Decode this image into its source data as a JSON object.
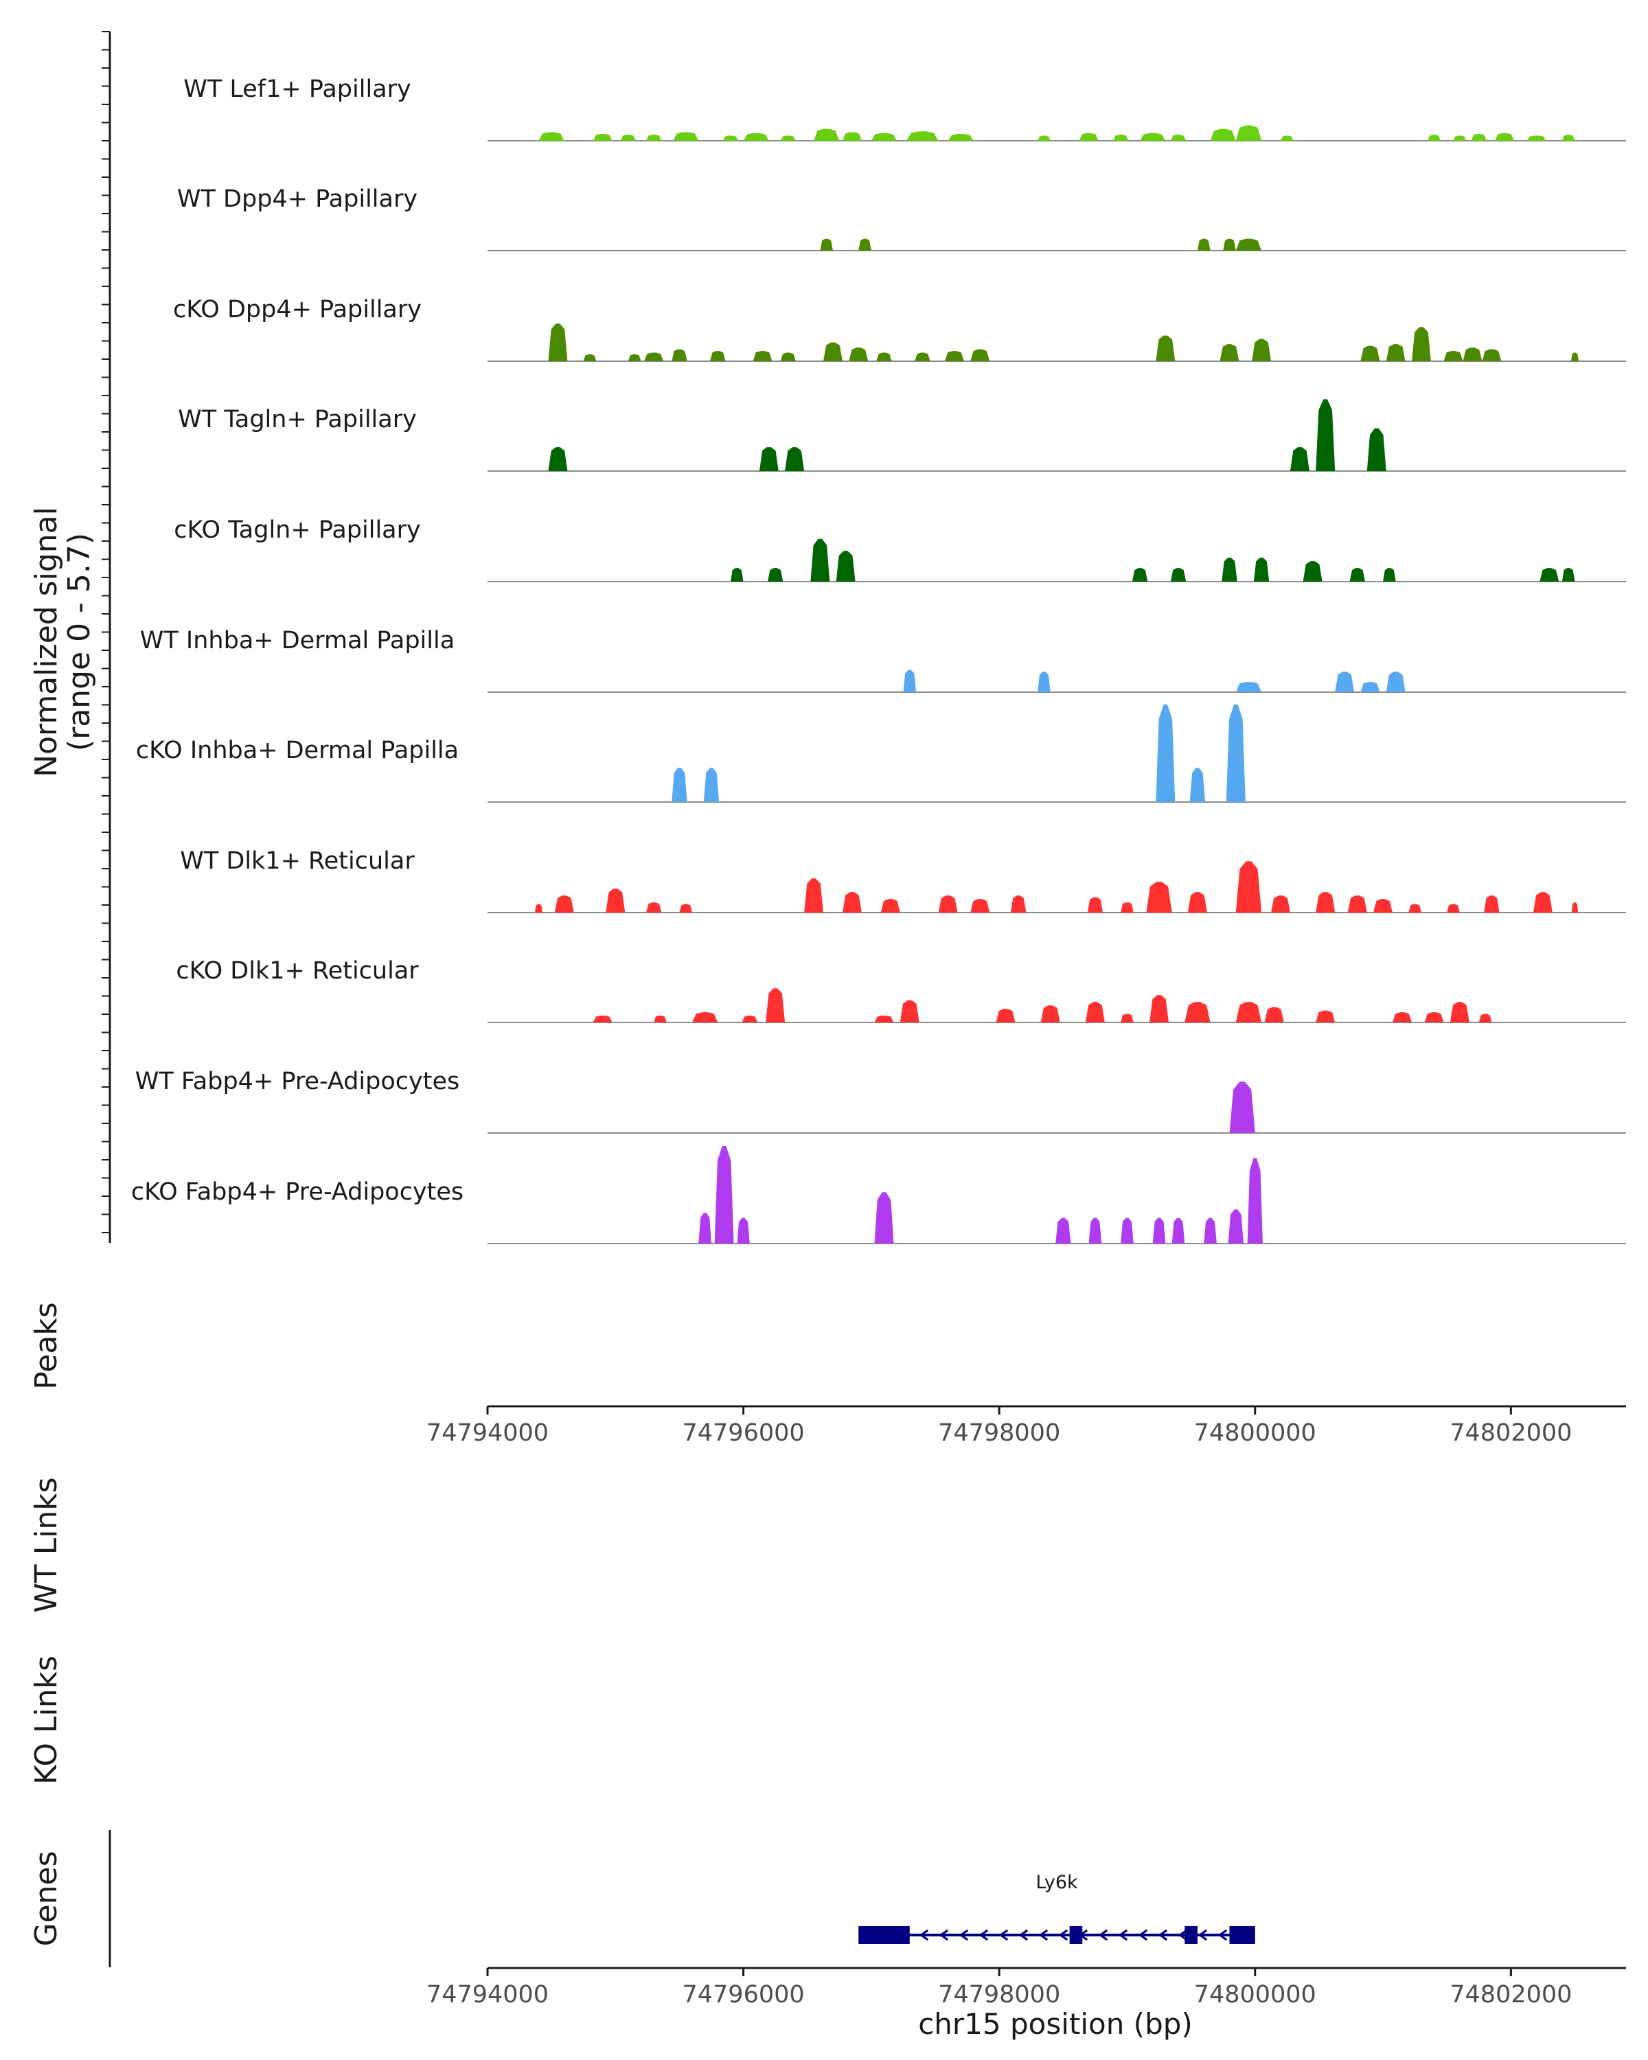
{
  "chart_data": {
    "type": "coverage",
    "y_axis_title_line1": "Normalized signal",
    "y_axis_title_line2": "(range 0 - 5.7)",
    "ylim": [
      0,
      5.7
    ],
    "xlim": [
      74794000,
      74802900
    ],
    "x_ticks": [
      74794000,
      74796000,
      74798000,
      74800000,
      74802000
    ],
    "x_tick_labels": [
      "74794000",
      "74796000",
      "74798000",
      "74800000",
      "74802000"
    ],
    "xlabel": "chr15 position (bp)",
    "tracks": [
      {
        "name": "WT Lef1+ Papillary",
        "color": "#6ACF11",
        "peaks": [
          [
            74794500,
            0.5,
            200
          ],
          [
            74794900,
            0.4,
            150
          ],
          [
            74795100,
            0.35,
            120
          ],
          [
            74795300,
            0.35,
            120
          ],
          [
            74795550,
            0.5,
            200
          ],
          [
            74795900,
            0.3,
            120
          ],
          [
            74796100,
            0.45,
            200
          ],
          [
            74796350,
            0.3,
            120
          ],
          [
            74796650,
            0.7,
            200
          ],
          [
            74796850,
            0.5,
            150
          ],
          [
            74797100,
            0.45,
            200
          ],
          [
            74797400,
            0.55,
            250
          ],
          [
            74797700,
            0.4,
            200
          ],
          [
            74798350,
            0.3,
            100
          ],
          [
            74798700,
            0.45,
            150
          ],
          [
            74798950,
            0.35,
            120
          ],
          [
            74799200,
            0.45,
            200
          ],
          [
            74799400,
            0.35,
            120
          ],
          [
            74799750,
            0.7,
            200
          ],
          [
            74799950,
            0.9,
            200
          ],
          [
            74800250,
            0.3,
            100
          ],
          [
            74801400,
            0.35,
            100
          ],
          [
            74801600,
            0.3,
            100
          ],
          [
            74801750,
            0.4,
            120
          ],
          [
            74801950,
            0.45,
            150
          ],
          [
            74802200,
            0.3,
            150
          ],
          [
            74802450,
            0.35,
            100
          ]
        ]
      },
      {
        "name": "WT Dpp4+ Papillary",
        "color": "#4B8A00",
        "peaks": [
          [
            74796650,
            0.7,
            100
          ],
          [
            74796950,
            0.7,
            100
          ],
          [
            74799600,
            0.7,
            100
          ],
          [
            74799800,
            0.7,
            100
          ],
          [
            74799950,
            0.7,
            200
          ]
        ]
      },
      {
        "name": "cKO Dpp4+ Papillary",
        "color": "#4B8A00",
        "peaks": [
          [
            74794550,
            2.2,
            150
          ],
          [
            74794800,
            0.4,
            100
          ],
          [
            74795150,
            0.4,
            100
          ],
          [
            74795300,
            0.5,
            150
          ],
          [
            74795500,
            0.7,
            120
          ],
          [
            74795800,
            0.6,
            120
          ],
          [
            74796150,
            0.6,
            150
          ],
          [
            74796350,
            0.5,
            120
          ],
          [
            74796700,
            1.1,
            150
          ],
          [
            74796900,
            0.8,
            150
          ],
          [
            74797100,
            0.5,
            120
          ],
          [
            74797400,
            0.5,
            120
          ],
          [
            74797650,
            0.6,
            150
          ],
          [
            74797850,
            0.7,
            150
          ],
          [
            74799300,
            1.5,
            150
          ],
          [
            74799800,
            1.0,
            150
          ],
          [
            74800050,
            1.3,
            150
          ],
          [
            74800900,
            0.9,
            150
          ],
          [
            74801100,
            1.0,
            150
          ],
          [
            74801300,
            2.0,
            150
          ],
          [
            74801550,
            0.6,
            150
          ],
          [
            74801700,
            0.8,
            150
          ],
          [
            74801850,
            0.7,
            150
          ],
          [
            74802500,
            0.5,
            60
          ]
        ]
      },
      {
        "name": "WT Tagln+ Papillary",
        "color": "#006400",
        "peaks": [
          [
            74794550,
            1.4,
            150
          ],
          [
            74796200,
            1.4,
            150
          ],
          [
            74796400,
            1.4,
            150
          ],
          [
            74800350,
            1.4,
            150
          ],
          [
            74800550,
            4.2,
            150
          ],
          [
            74800950,
            2.5,
            150
          ]
        ]
      },
      {
        "name": "cKO Tagln+ Papillary",
        "color": "#006400",
        "peaks": [
          [
            74795950,
            0.8,
            100
          ],
          [
            74796250,
            0.8,
            120
          ],
          [
            74796600,
            2.5,
            150
          ],
          [
            74796800,
            1.8,
            150
          ],
          [
            74799100,
            0.8,
            120
          ],
          [
            74799400,
            0.8,
            120
          ],
          [
            74799800,
            1.4,
            120
          ],
          [
            74800050,
            1.4,
            120
          ],
          [
            74800450,
            1.2,
            150
          ],
          [
            74800800,
            0.8,
            120
          ],
          [
            74801050,
            0.8,
            100
          ],
          [
            74802300,
            0.8,
            150
          ],
          [
            74802450,
            0.8,
            100
          ]
        ]
      },
      {
        "name": "WT Inhba+ Dermal Papilla",
        "color": "#56A8F0",
        "peaks": [
          [
            74797300,
            1.3,
            100
          ],
          [
            74798350,
            1.2,
            100
          ],
          [
            74799950,
            0.6,
            200
          ],
          [
            74800700,
            1.2,
            150
          ],
          [
            74800900,
            0.6,
            150
          ],
          [
            74801100,
            1.2,
            150
          ]
        ]
      },
      {
        "name": "cKO Inhba+ Dermal Papilla",
        "color": "#56A8F0",
        "peaks": [
          [
            74795500,
            2.0,
            120
          ],
          [
            74795750,
            2.0,
            120
          ],
          [
            74799300,
            5.7,
            150
          ],
          [
            74799550,
            2.0,
            120
          ],
          [
            74799850,
            5.7,
            150
          ]
        ]
      },
      {
        "name": "WT Dlk1+ Reticular",
        "color": "#FF3030",
        "peaks": [
          [
            74794400,
            0.5,
            60
          ],
          [
            74794600,
            1.0,
            150
          ],
          [
            74795000,
            1.4,
            150
          ],
          [
            74795300,
            0.6,
            120
          ],
          [
            74795550,
            0.5,
            100
          ],
          [
            74796550,
            2.0,
            150
          ],
          [
            74796850,
            1.2,
            150
          ],
          [
            74797150,
            0.8,
            150
          ],
          [
            74797600,
            1.0,
            150
          ],
          [
            74797850,
            0.8,
            150
          ],
          [
            74798150,
            1.0,
            120
          ],
          [
            74798750,
            0.9,
            120
          ],
          [
            74799000,
            0.6,
            100
          ],
          [
            74799250,
            1.8,
            200
          ],
          [
            74799550,
            1.2,
            150
          ],
          [
            74799950,
            3.0,
            200
          ],
          [
            74800200,
            1.0,
            150
          ],
          [
            74800550,
            1.2,
            150
          ],
          [
            74800800,
            1.0,
            150
          ],
          [
            74801000,
            0.8,
            150
          ],
          [
            74801250,
            0.5,
            100
          ],
          [
            74801550,
            0.5,
            100
          ],
          [
            74801850,
            1.0,
            120
          ],
          [
            74802250,
            1.2,
            150
          ],
          [
            74802500,
            0.6,
            50
          ]
        ]
      },
      {
        "name": "cKO Dlk1+ Reticular",
        "color": "#FF3030",
        "peaks": [
          [
            74794900,
            0.4,
            150
          ],
          [
            74795350,
            0.4,
            100
          ],
          [
            74795700,
            0.6,
            200
          ],
          [
            74796050,
            0.4,
            120
          ],
          [
            74796250,
            2.0,
            150
          ],
          [
            74797100,
            0.4,
            150
          ],
          [
            74797300,
            1.3,
            150
          ],
          [
            74798050,
            0.8,
            150
          ],
          [
            74798400,
            1.0,
            150
          ],
          [
            74798750,
            1.2,
            150
          ],
          [
            74799000,
            0.5,
            100
          ],
          [
            74799250,
            1.6,
            150
          ],
          [
            74799550,
            1.2,
            200
          ],
          [
            74799950,
            1.2,
            200
          ],
          [
            74800150,
            0.9,
            150
          ],
          [
            74800550,
            0.7,
            150
          ],
          [
            74801150,
            0.6,
            150
          ],
          [
            74801400,
            0.6,
            150
          ],
          [
            74801600,
            1.2,
            150
          ],
          [
            74801800,
            0.5,
            100
          ]
        ]
      },
      {
        "name": "WT Fabp4+ Pre-Adipocytes",
        "color": "#B03CF0",
        "peaks": [
          [
            74799900,
            3.0,
            200
          ]
        ]
      },
      {
        "name": "cKO Fabp4+ Pre-Adipocytes",
        "color": "#B03CF0",
        "peaks": [
          [
            74795700,
            1.8,
            100
          ],
          [
            74795850,
            5.7,
            150
          ],
          [
            74796000,
            1.5,
            100
          ],
          [
            74797100,
            3.0,
            150
          ],
          [
            74798500,
            1.5,
            120
          ],
          [
            74798750,
            1.5,
            100
          ],
          [
            74799000,
            1.5,
            100
          ],
          [
            74799250,
            1.5,
            100
          ],
          [
            74799400,
            1.5,
            100
          ],
          [
            74799650,
            1.5,
            100
          ],
          [
            74799850,
            2.0,
            120
          ],
          [
            74800000,
            5.0,
            120
          ]
        ]
      }
    ]
  },
  "peaks_label": "Peaks",
  "wt_links_label": "WT Links",
  "ko_links_label": "KO Links",
  "genes_label": "Genes",
  "gene": {
    "name": "Ly6k",
    "start": 74796900,
    "end": 74800000,
    "strand": "-",
    "color": "#000080",
    "exons": [
      [
        74796900,
        74797300
      ],
      [
        74798550,
        74798650
      ],
      [
        74799450,
        74799550
      ],
      [
        74799800,
        74800000
      ]
    ]
  }
}
